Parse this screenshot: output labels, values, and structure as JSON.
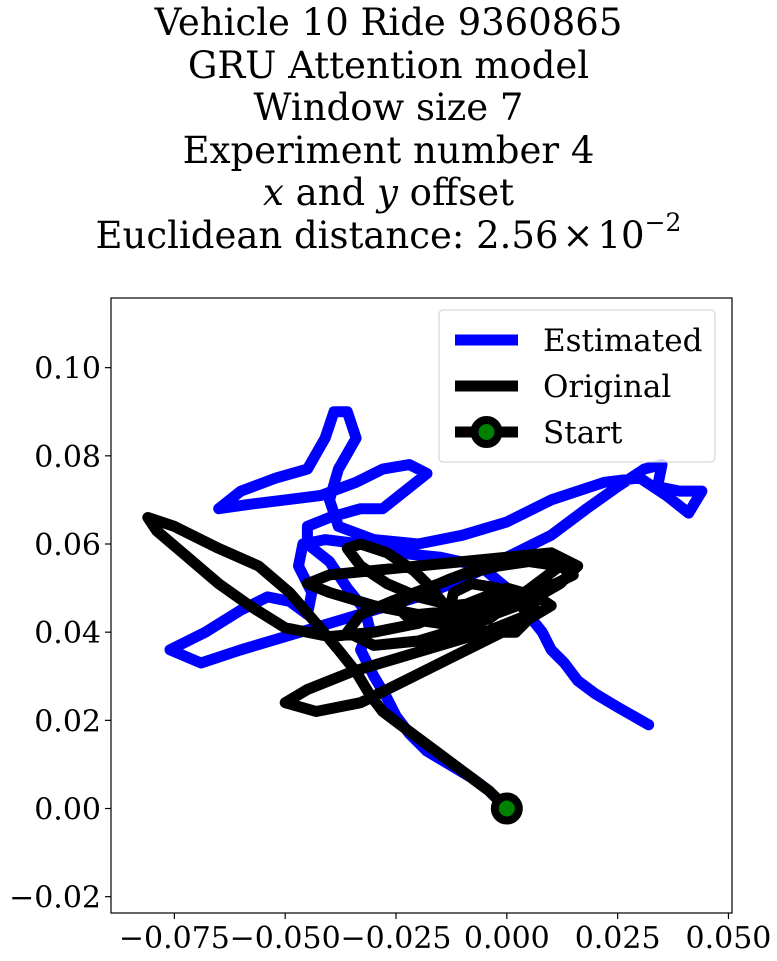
{
  "chart_data": {
    "type": "line",
    "title_lines": {
      "line1": "Vehicle 10 Ride 9360865",
      "line2": "GRU Attention model",
      "line3": "Window size 7",
      "line4": "Experiment number 4",
      "line5_var_x": "x",
      "line5_mid": " and ",
      "line5_var_y": "y",
      "line5_tail": " offset",
      "line6_prefix": "Euclidean distance: ",
      "line6_mantissa": "2.56",
      "line6_times": "×",
      "line6_base": "10",
      "line6_exp": "−2"
    },
    "xlim": [
      -0.0893,
      0.0508
    ],
    "ylim": [
      -0.0237,
      0.1158
    ],
    "x_ticks": [
      {
        "value": -0.075,
        "label": "−0.075"
      },
      {
        "value": -0.05,
        "label": "−0.050"
      },
      {
        "value": -0.025,
        "label": "−0.025"
      },
      {
        "value": 0.0,
        "label": "0.000"
      },
      {
        "value": 0.025,
        "label": "0.025"
      },
      {
        "value": 0.05,
        "label": "0.050"
      }
    ],
    "y_ticks": [
      {
        "value": -0.02,
        "label": "−0.02"
      },
      {
        "value": 0.0,
        "label": "0.00"
      },
      {
        "value": 0.02,
        "label": "0.02"
      },
      {
        "value": 0.04,
        "label": "0.04"
      },
      {
        "value": 0.06,
        "label": "0.06"
      },
      {
        "value": 0.08,
        "label": "0.08"
      },
      {
        "value": 0.1,
        "label": "0.10"
      }
    ],
    "grid": false,
    "legend_position": "top-right",
    "series": [
      {
        "name": "Estimated",
        "color": "#0000ff",
        "points": [
          [
            0.032,
            0.019
          ],
          [
            0.025,
            0.023
          ],
          [
            0.02,
            0.026
          ],
          [
            0.016,
            0.029
          ],
          [
            0.013,
            0.033
          ],
          [
            0.01,
            0.036
          ],
          [
            0.008,
            0.04
          ],
          [
            0.004,
            0.045
          ],
          [
            0.0,
            0.05
          ],
          [
            -0.006,
            0.055
          ],
          [
            -0.015,
            0.057
          ],
          [
            -0.025,
            0.058
          ],
          [
            -0.033,
            0.06
          ],
          [
            -0.041,
            0.061
          ],
          [
            -0.046,
            0.06
          ],
          [
            -0.047,
            0.055
          ],
          [
            -0.044,
            0.049
          ],
          [
            -0.045,
            0.044
          ],
          [
            -0.049,
            0.047
          ],
          [
            -0.054,
            0.048
          ],
          [
            -0.06,
            0.045
          ],
          [
            -0.068,
            0.04
          ],
          [
            -0.076,
            0.036
          ],
          [
            -0.069,
            0.033
          ],
          [
            -0.06,
            0.036
          ],
          [
            -0.05,
            0.039
          ],
          [
            -0.04,
            0.042
          ],
          [
            -0.03,
            0.045
          ],
          [
            -0.02,
            0.048
          ],
          [
            -0.01,
            0.052
          ],
          [
            0.0,
            0.057
          ],
          [
            0.01,
            0.062
          ],
          [
            0.018,
            0.068
          ],
          [
            0.025,
            0.073
          ],
          [
            0.031,
            0.077
          ],
          [
            0.035,
            0.078
          ],
          [
            0.034,
            0.073
          ],
          [
            0.039,
            0.072
          ],
          [
            0.044,
            0.072
          ],
          [
            0.041,
            0.067
          ],
          [
            0.036,
            0.071
          ],
          [
            0.03,
            0.075
          ],
          [
            0.022,
            0.074
          ],
          [
            0.01,
            0.07
          ],
          [
            0.0,
            0.065
          ],
          [
            -0.01,
            0.062
          ],
          [
            -0.02,
            0.06
          ],
          [
            -0.03,
            0.061
          ],
          [
            -0.038,
            0.064
          ],
          [
            -0.04,
            0.07
          ],
          [
            -0.038,
            0.077
          ],
          [
            -0.034,
            0.084
          ],
          [
            -0.036,
            0.09
          ],
          [
            -0.039,
            0.09
          ],
          [
            -0.041,
            0.084
          ],
          [
            -0.045,
            0.077
          ],
          [
            -0.052,
            0.075
          ],
          [
            -0.06,
            0.072
          ],
          [
            -0.065,
            0.068
          ],
          [
            -0.058,
            0.069
          ],
          [
            -0.05,
            0.07
          ],
          [
            -0.042,
            0.071
          ],
          [
            -0.034,
            0.074
          ],
          [
            -0.028,
            0.077
          ],
          [
            -0.022,
            0.078
          ],
          [
            -0.018,
            0.076
          ],
          [
            -0.023,
            0.072
          ],
          [
            -0.028,
            0.068
          ],
          [
            -0.033,
            0.068
          ],
          [
            -0.04,
            0.066
          ],
          [
            -0.045,
            0.064
          ],
          [
            -0.045,
            0.06
          ],
          [
            -0.04,
            0.056
          ],
          [
            -0.036,
            0.05
          ],
          [
            -0.032,
            0.045
          ],
          [
            -0.031,
            0.041
          ],
          [
            -0.033,
            0.036
          ],
          [
            -0.03,
            0.03
          ],
          [
            -0.027,
            0.025
          ],
          [
            -0.025,
            0.021
          ],
          [
            -0.022,
            0.017
          ],
          [
            -0.018,
            0.013
          ],
          [
            -0.013,
            0.01
          ],
          [
            -0.008,
            0.007
          ],
          [
            -0.004,
            0.004
          ],
          [
            0.0,
            0.0
          ]
        ]
      },
      {
        "name": "Original",
        "color": "#000000",
        "points": [
          [
            0.0,
            0.0
          ],
          [
            -0.004,
            0.004
          ],
          [
            -0.008,
            0.007
          ],
          [
            -0.012,
            0.01
          ],
          [
            -0.016,
            0.013
          ],
          [
            -0.02,
            0.016
          ],
          [
            -0.024,
            0.019
          ],
          [
            -0.028,
            0.022
          ],
          [
            -0.031,
            0.026
          ],
          [
            -0.034,
            0.031
          ],
          [
            -0.038,
            0.036
          ],
          [
            -0.043,
            0.042
          ],
          [
            -0.049,
            0.049
          ],
          [
            -0.056,
            0.055
          ],
          [
            -0.065,
            0.059
          ],
          [
            -0.075,
            0.064
          ],
          [
            -0.081,
            0.066
          ],
          [
            -0.079,
            0.063
          ],
          [
            -0.072,
            0.057
          ],
          [
            -0.065,
            0.051
          ],
          [
            -0.058,
            0.046
          ],
          [
            -0.05,
            0.041
          ],
          [
            -0.04,
            0.039
          ],
          [
            -0.03,
            0.04
          ],
          [
            -0.02,
            0.042
          ],
          [
            -0.01,
            0.046
          ],
          [
            0.0,
            0.05
          ],
          [
            0.007,
            0.048
          ],
          [
            0.005,
            0.044
          ],
          [
            -0.005,
            0.04
          ],
          [
            -0.015,
            0.037
          ],
          [
            -0.025,
            0.034
          ],
          [
            -0.035,
            0.031
          ],
          [
            -0.045,
            0.027
          ],
          [
            -0.05,
            0.024
          ],
          [
            -0.043,
            0.022
          ],
          [
            -0.033,
            0.024
          ],
          [
            -0.023,
            0.029
          ],
          [
            -0.013,
            0.034
          ],
          [
            -0.003,
            0.039
          ],
          [
            0.005,
            0.043
          ],
          [
            0.01,
            0.046
          ],
          [
            0.007,
            0.048
          ],
          [
            0.0,
            0.047
          ],
          [
            -0.01,
            0.045
          ],
          [
            -0.02,
            0.044
          ],
          [
            -0.03,
            0.046
          ],
          [
            -0.04,
            0.049
          ],
          [
            -0.045,
            0.051
          ],
          [
            -0.04,
            0.053
          ],
          [
            -0.03,
            0.054
          ],
          [
            -0.02,
            0.055
          ],
          [
            -0.01,
            0.056
          ],
          [
            0.0,
            0.057
          ],
          [
            0.01,
            0.058
          ],
          [
            0.016,
            0.055
          ],
          [
            0.012,
            0.051
          ],
          [
            0.005,
            0.047
          ],
          [
            -0.003,
            0.044
          ],
          [
            -0.01,
            0.041
          ],
          [
            -0.02,
            0.038
          ],
          [
            -0.03,
            0.037
          ],
          [
            -0.036,
            0.04
          ],
          [
            -0.033,
            0.044
          ],
          [
            -0.026,
            0.047
          ],
          [
            -0.018,
            0.05
          ],
          [
            -0.01,
            0.053
          ],
          [
            -0.002,
            0.055
          ],
          [
            0.005,
            0.056
          ],
          [
            0.012,
            0.055
          ],
          [
            0.015,
            0.053
          ],
          [
            0.011,
            0.051
          ],
          [
            0.004,
            0.049
          ],
          [
            -0.004,
            0.047
          ],
          [
            -0.012,
            0.046
          ],
          [
            -0.02,
            0.048
          ],
          [
            -0.027,
            0.051
          ],
          [
            -0.033,
            0.055
          ],
          [
            -0.036,
            0.059
          ],
          [
            -0.033,
            0.06
          ],
          [
            -0.027,
            0.058
          ],
          [
            -0.021,
            0.054
          ],
          [
            -0.017,
            0.05
          ],
          [
            -0.014,
            0.046
          ],
          [
            -0.01,
            0.042
          ],
          [
            -0.004,
            0.04
          ],
          [
            0.002,
            0.04
          ],
          [
            0.005,
            0.043
          ],
          [
            0.003,
            0.047
          ],
          [
            -0.002,
            0.05
          ],
          [
            -0.008,
            0.051
          ],
          [
            -0.012,
            0.049
          ],
          [
            -0.013,
            0.045
          ],
          [
            -0.009,
            0.042
          ],
          [
            -0.004,
            0.043
          ],
          [
            0.0,
            0.046
          ],
          [
            0.004,
            0.049
          ],
          [
            0.008,
            0.052
          ],
          [
            0.012,
            0.055
          ],
          [
            0.01,
            0.057
          ],
          [
            0.003,
            0.057
          ],
          [
            -0.005,
            0.055
          ],
          [
            -0.013,
            0.052
          ],
          [
            -0.02,
            0.049
          ],
          [
            -0.025,
            0.046
          ],
          [
            -0.022,
            0.043
          ],
          [
            -0.015,
            0.042
          ],
          [
            -0.008,
            0.043
          ],
          [
            -0.002,
            0.045
          ],
          [
            0.002,
            0.047
          ],
          [
            0.0,
            0.049
          ]
        ]
      }
    ],
    "start_marker": {
      "name": "Start",
      "x": 0.0,
      "y": 0.0,
      "edge_color": "#000000",
      "face_color": "#008000"
    },
    "legend": [
      {
        "label": "Estimated",
        "color": "#0000ff",
        "kind": "line"
      },
      {
        "label": "Original",
        "color": "#000000",
        "kind": "line"
      },
      {
        "label": "Start",
        "color": "#000000",
        "kind": "marker"
      }
    ]
  }
}
